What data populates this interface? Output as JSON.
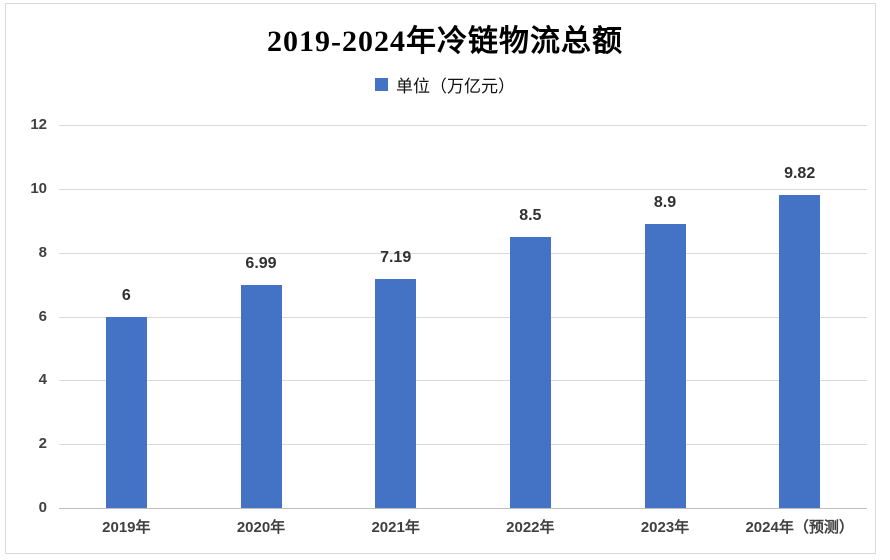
{
  "page": {
    "background": "#ffffff",
    "frame_border_color": "#d9d9d9"
  },
  "chart_data": {
    "type": "bar",
    "title": "2019-2024年冷链物流总额",
    "legend": [
      {
        "label": "单位（万亿元）",
        "color": "#4472C4"
      }
    ],
    "legend_position": "top",
    "categories": [
      "2019年",
      "2020年",
      "2021年",
      "2022年",
      "2023年",
      "2024年（预测）"
    ],
    "values": [
      6,
      6.99,
      7.19,
      8.5,
      8.9,
      9.82
    ],
    "value_labels": [
      "6",
      "6.99",
      "7.19",
      "8.5",
      "8.9",
      "9.82"
    ],
    "xlabel": "",
    "ylabel": "",
    "ylim": [
      0,
      12
    ],
    "yticks": [
      0,
      2,
      4,
      6,
      8,
      10,
      12
    ],
    "grid": true,
    "bar_color": "#4472C4",
    "gridline_color": "#d9d9d9",
    "axis_line_color": "#bfbfbf",
    "tick_label_color": "#404040",
    "value_label_color": "#303030"
  }
}
